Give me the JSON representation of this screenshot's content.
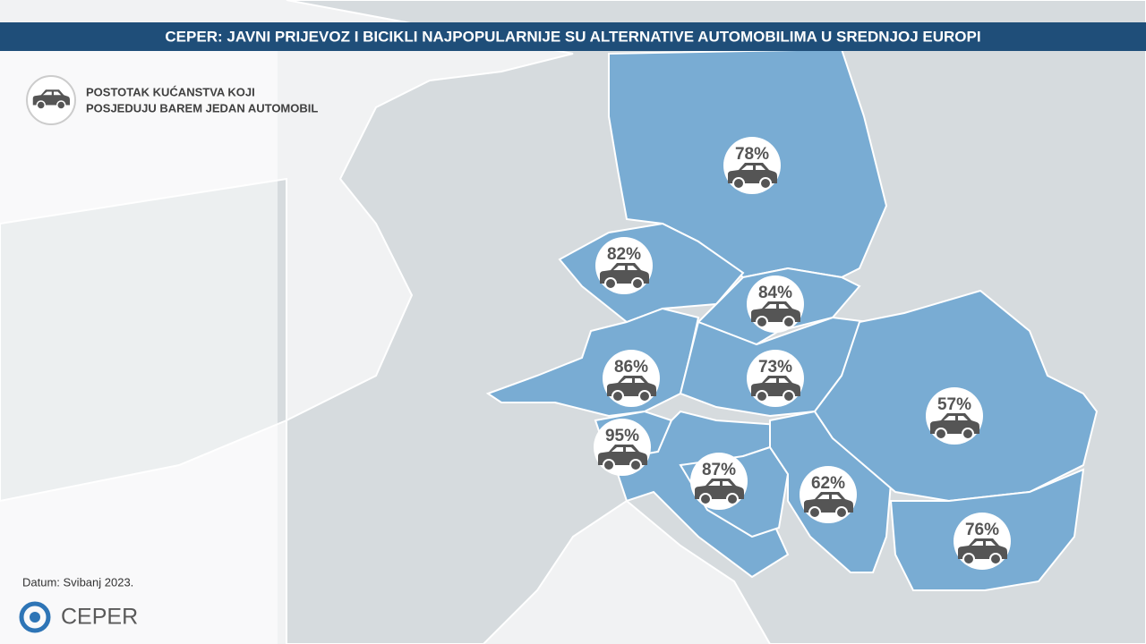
{
  "header": {
    "title": "CEPER: JAVNI PRIJEVOZ I BICIKLI NAJPOPULARNIJE  SU ALTERNATIVE AUTOMOBILIMA U SREDNJOJ EUROPI"
  },
  "legend": {
    "lines": [
      "POSTOTAK KUĆANSTVA KOJI",
      "POSJEDUJU BAREM JEDAN AUTOMOBIL"
    ]
  },
  "markers": [
    {
      "label": "78%"
    },
    {
      "label": "82%"
    },
    {
      "label": "84%"
    },
    {
      "label": "86%"
    },
    {
      "label": "73%"
    },
    {
      "label": "57%"
    },
    {
      "label": "95%"
    },
    {
      "label": "87%"
    },
    {
      "label": "62%"
    },
    {
      "label": "76%"
    }
  ],
  "footer": {
    "date": "Datum: Svibanj 2023.",
    "logo": "CEPER"
  }
}
